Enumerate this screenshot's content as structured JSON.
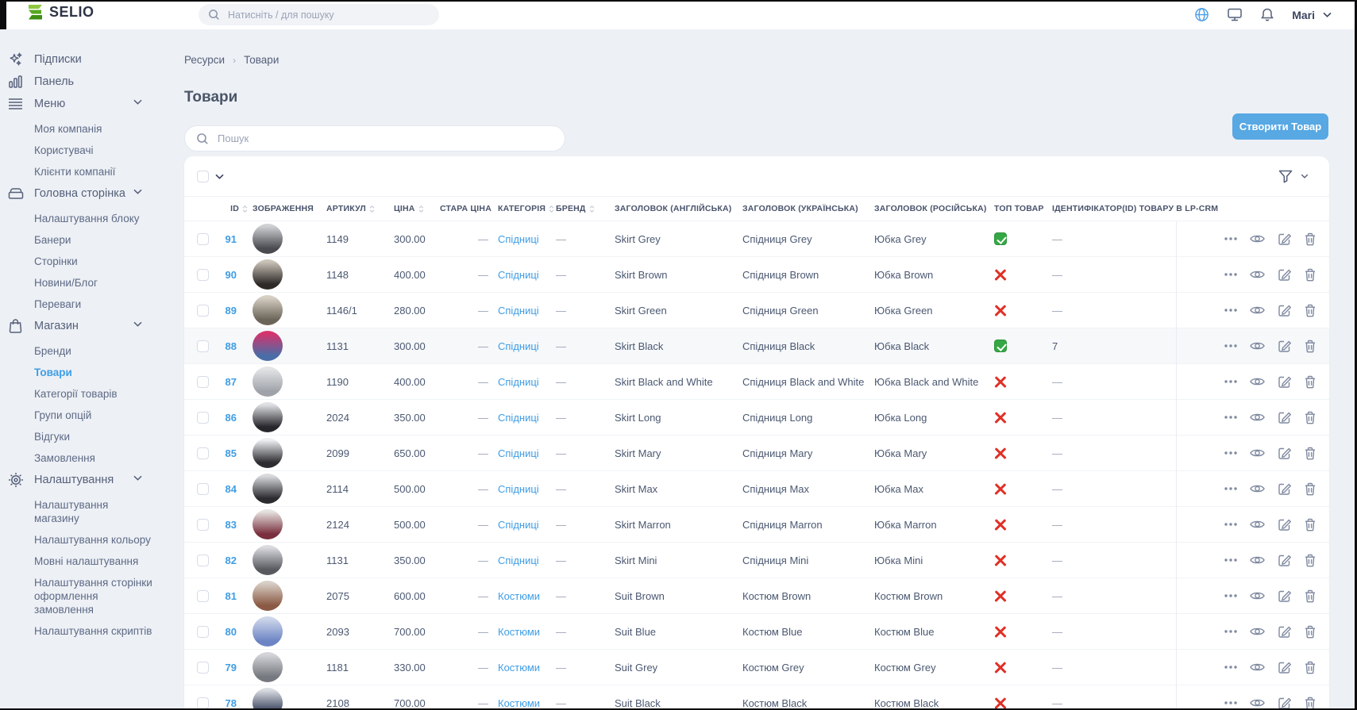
{
  "topbar": {
    "logo_text": "SELIO",
    "search_placeholder": "Натисніть / для пошуку",
    "user_name": "Mari",
    "icons": [
      "globe-icon",
      "monitor-icon",
      "bell-icon"
    ],
    "accent_color": "#4a9fe8"
  },
  "sidebar": {
    "sections": [
      {
        "icon": "sparkles-icon",
        "label": "Підписки",
        "chevron": false,
        "items": []
      },
      {
        "icon": "bar-chart-icon",
        "label": "Панель",
        "chevron": false,
        "items": []
      },
      {
        "icon": "menu-lines-icon",
        "label": "Меню",
        "chevron": true,
        "items": [
          "Моя компанія",
          "Користувачі",
          "Клієнти компанії"
        ]
      },
      {
        "icon": "archive-icon",
        "label": "Головна сторінка",
        "chevron": true,
        "items": [
          "Налаштування блоку",
          "Банери",
          "Сторінки",
          "Новини/Блог",
          "Переваги"
        ]
      },
      {
        "icon": "bag-icon",
        "label": "Магазин",
        "chevron": true,
        "items": [
          "Бренди",
          "Товари",
          "Категорії товарів",
          "Групи опцій",
          "Відгуки",
          "Замовлення"
        ],
        "active_item": "Товари"
      },
      {
        "icon": "gear-icon",
        "label": "Налаштування",
        "chevron": true,
        "items": [
          "Налаштування\nмагазину",
          "Налаштування кольору",
          "Мовні налаштування",
          "Налаштування сторінки\nоформлення\nзамовлення",
          "Налаштування скриптів"
        ]
      }
    ],
    "active_color": "#3e9de5"
  },
  "breadcrumb": {
    "items": [
      "Ресурси",
      "Товари"
    ],
    "separator": "›"
  },
  "page": {
    "title": "Товари"
  },
  "toolbar": {
    "search_placeholder": "Пошук",
    "create_label": "Створити Товар",
    "button_color": "#57a8e3"
  },
  "table": {
    "headers": [
      {
        "label": "ID",
        "sortable": true
      },
      {
        "label": "ЗОБРАЖЕННЯ",
        "sortable": false
      },
      {
        "label": "АРТИКУЛ",
        "sortable": true
      },
      {
        "label": "ЦІНА",
        "sortable": true
      },
      {
        "label": "СТАРА ЦІНА",
        "sortable": false
      },
      {
        "label": "КАТЕГОРІЯ",
        "sortable": true
      },
      {
        "label": "БРЕНД",
        "sortable": true
      },
      {
        "label": "ЗАГОЛОВОК (АНГЛІЙСЬКА)",
        "sortable": false
      },
      {
        "label": "ЗАГОЛОВОК (УКРАЇНСЬКА)",
        "sortable": false
      },
      {
        "label": "ЗАГОЛОВОК (РОСІЙСЬКА)",
        "sortable": false
      },
      {
        "label": "ТОП ТОВАР",
        "sortable": false
      },
      {
        "label": "ІДЕНТИФІКАТОР(ID) ТОВАРУ В LP-CRM",
        "sortable": false
      }
    ],
    "status_colors": {
      "top_yes": "#35a845",
      "top_no": "#e03026"
    },
    "rows": [
      {
        "id": "91",
        "article": "1149",
        "price": "300.00",
        "old_price": "—",
        "category": "Спідниці",
        "brand": "—",
        "title_en": "Skirt Grey",
        "title_uk": "Спідниця Grey",
        "title_ru": "Юбка Grey",
        "top": true,
        "lp_crm": "—",
        "highlight": false,
        "av": [
          "#cfd1d4",
          "#4a4b50"
        ]
      },
      {
        "id": "90",
        "article": "1148",
        "price": "400.00",
        "old_price": "—",
        "category": "Спідниці",
        "brand": "—",
        "title_en": "Skirt Brown",
        "title_uk": "Спідниця Brown",
        "title_ru": "Юбка Brown",
        "top": false,
        "lp_crm": "—",
        "highlight": false,
        "av": [
          "#c9c2b8",
          "#2e2a28"
        ]
      },
      {
        "id": "89",
        "article": "1146/1",
        "price": "280.00",
        "old_price": "—",
        "category": "Спідниці",
        "brand": "—",
        "title_en": "Skirt Green",
        "title_uk": "Спідниця Green",
        "title_ru": "Юбка Green",
        "top": false,
        "lp_crm": "—",
        "highlight": false,
        "av": [
          "#d6cfc4",
          "#6b6458"
        ]
      },
      {
        "id": "88",
        "article": "1131",
        "price": "300.00",
        "old_price": "—",
        "category": "Спідниці",
        "brand": "—",
        "title_en": "Skirt Black",
        "title_uk": "Спідниця Black",
        "title_ru": "Юбка Black",
        "top": true,
        "lp_crm": "7",
        "highlight": true,
        "av": [
          "#d6336c",
          "#4a6da7"
        ]
      },
      {
        "id": "87",
        "article": "1190",
        "price": "400.00",
        "old_price": "—",
        "category": "Спідниці",
        "brand": "—",
        "title_en": "Skirt Black and White",
        "title_uk": "Спідниця Black and White",
        "title_ru": "Юбка Black and White",
        "top": false,
        "lp_crm": "—",
        "highlight": false,
        "av": [
          "#e3e4e6",
          "#9fa3a9"
        ]
      },
      {
        "id": "86",
        "article": "2024",
        "price": "350.00",
        "old_price": "—",
        "category": "Спідниці",
        "brand": "—",
        "title_en": "Skirt Long",
        "title_uk": "Спідниця Long",
        "title_ru": "Юбка Long",
        "top": false,
        "lp_crm": "—",
        "highlight": false,
        "av": [
          "#dfe1e4",
          "#26262b"
        ]
      },
      {
        "id": "85",
        "article": "2099",
        "price": "650.00",
        "old_price": "—",
        "category": "Спідниці",
        "brand": "—",
        "title_en": "Skirt Mary",
        "title_uk": "Спідниця Mary",
        "title_ru": "Юбка Mary",
        "top": false,
        "lp_crm": "—",
        "highlight": false,
        "av": [
          "#eceff1",
          "#2c2c31"
        ]
      },
      {
        "id": "84",
        "article": "2114",
        "price": "500.00",
        "old_price": "—",
        "category": "Спідниці",
        "brand": "—",
        "title_en": "Skirt Max",
        "title_uk": "Спідниця Max",
        "title_ru": "Юбка Max",
        "top": false,
        "lp_crm": "—",
        "highlight": false,
        "av": [
          "#d8dadd",
          "#2b2b30"
        ]
      },
      {
        "id": "83",
        "article": "2124",
        "price": "500.00",
        "old_price": "—",
        "category": "Спідниці",
        "brand": "—",
        "title_en": "Skirt Marron",
        "title_uk": "Спідниця Marron",
        "title_ru": "Юбка Marron",
        "top": false,
        "lp_crm": "—",
        "highlight": false,
        "av": [
          "#e5e2df",
          "#7a2f3e"
        ]
      },
      {
        "id": "82",
        "article": "1131",
        "price": "350.00",
        "old_price": "—",
        "category": "Спідниці",
        "brand": "—",
        "title_en": "Skirt Mini",
        "title_uk": "Спідниця Mini",
        "title_ru": "Юбка Mini",
        "top": false,
        "lp_crm": "—",
        "highlight": false,
        "av": [
          "#d9dbdf",
          "#57595e"
        ]
      },
      {
        "id": "81",
        "article": "2075",
        "price": "600.00",
        "old_price": "—",
        "category": "Костюми",
        "brand": "—",
        "title_en": "Suit Brown",
        "title_uk": "Костюм Brown",
        "title_ru": "Костюм Brown",
        "top": false,
        "lp_crm": "—",
        "highlight": false,
        "av": [
          "#d8cfc6",
          "#8a5a44"
        ]
      },
      {
        "id": "80",
        "article": "2093",
        "price": "700.00",
        "old_price": "—",
        "category": "Костюми",
        "brand": "—",
        "title_en": "Suit Blue",
        "title_uk": "Костюм Blue",
        "title_ru": "Костюм Blue",
        "top": false,
        "lp_crm": "—",
        "highlight": false,
        "av": [
          "#cdd6ea",
          "#6c84c4"
        ]
      },
      {
        "id": "79",
        "article": "1181",
        "price": "330.00",
        "old_price": "—",
        "category": "Костюми",
        "brand": "—",
        "title_en": "Suit Grey",
        "title_uk": "Костюм Grey",
        "title_ru": "Костюм Grey",
        "top": false,
        "lp_crm": "—",
        "highlight": false,
        "av": [
          "#d3d5d9",
          "#75787e"
        ]
      },
      {
        "id": "78",
        "article": "2108",
        "price": "700.00",
        "old_price": "—",
        "category": "Костюми",
        "brand": "—",
        "title_en": "Suit Black",
        "title_uk": "Костюм Black",
        "title_ru": "Костюм Black",
        "top": false,
        "lp_crm": "—",
        "highlight": false,
        "av": [
          "#d9dce1",
          "#2f3a55"
        ]
      }
    ]
  }
}
